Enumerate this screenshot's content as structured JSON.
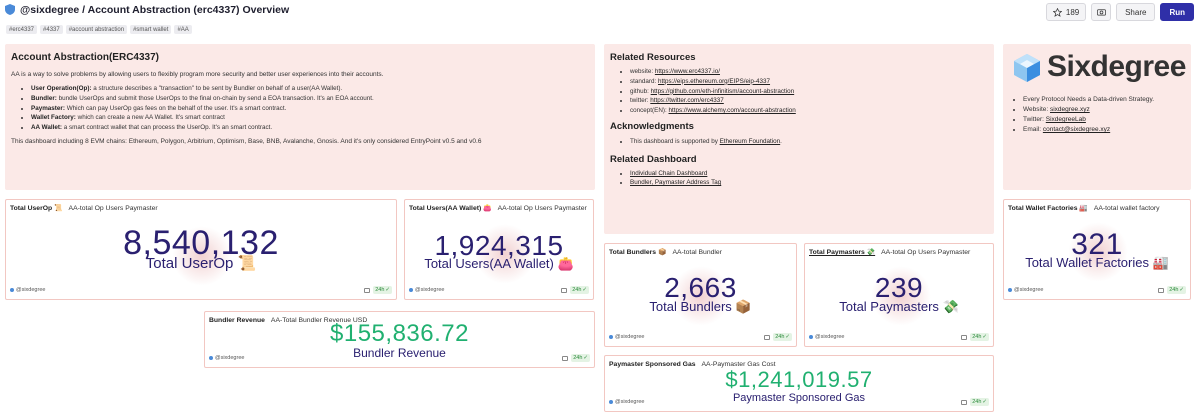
{
  "header": {
    "title": "@sixdegree / Account Abstraction (erc4337) Overview",
    "tags": [
      "#erc4337",
      "#4337",
      "#account abstraction",
      "#smart wallet",
      "#AA"
    ],
    "star_count": "189",
    "share_label": "Share",
    "run_label": "Run"
  },
  "intro": {
    "title": "Account Abstraction(ERC4337)",
    "description": "AA is a way to solve problems by allowing users to flexibly program more security and better user experiences into their accounts.",
    "items": [
      {
        "term": "User Operation(Op):",
        "text": " a structure describes a \"transaction\" to be sent by Bundler on behalf of a user(AA Wallet)."
      },
      {
        "term": "Bundler:",
        "text": " bundle UserOps and submit those UserOps to the final on-chain by send a EOA transaction. It's an EOA account."
      },
      {
        "term": "Paymaster:",
        "text": " Which can pay UserOp gas fees on the behalf of the user. It's a smart contract."
      },
      {
        "term": "Wallet Factory:",
        "text": " which can create a new AA Wallet. It's smart contract"
      },
      {
        "term": "AA Wallet:",
        "text": " a smart contract wallet that can process the UserOp. It's an smart contract."
      }
    ],
    "footer": "This dashboard including 8 EVM chains: Ethereum, Polygon, Arbitrium, Optimism, Base, BNB, Avalanche, Gnosis. And it's only considered EntryPoint v0.5 and v0.6"
  },
  "resources": {
    "title": "Related Resources",
    "links": [
      {
        "label": "website: ",
        "url": "https://www.erc4337.io/"
      },
      {
        "label": "standard: ",
        "url": "https://eips.ethereum.org/EIPS/eip-4337"
      },
      {
        "label": "github: ",
        "url": "https://github.com/eth-infinitism/account-abstraction"
      },
      {
        "label": "twitter: ",
        "url": "https://twitter.com/erc4337"
      },
      {
        "label": "concept(EN): ",
        "url": "https://www.alchemy.com/account-abstraction"
      }
    ],
    "ack_title": "Acknowledgments",
    "ack_text": "This dashboard is supported by ",
    "ack_link": "Ethereum Foundation",
    "ack_end": ".",
    "related_title": "Related Dashboard",
    "related_links": [
      "Individual Chain Dashboard",
      "Bundler, Paymaster Address Tag"
    ]
  },
  "brand": {
    "name": "Sixdegree",
    "items": [
      {
        "label": "Every Protocol Needs a Data-driven Strategy.",
        "link": ""
      },
      {
        "label": "Website: ",
        "link": "sixdegree.xyz"
      },
      {
        "label": "Twitter: ",
        "link": "SixdegreeLab"
      },
      {
        "label": "Email: ",
        "link": "contact@sixdegree.xyz"
      }
    ]
  },
  "counters": {
    "total_userop": {
      "title": "Total UserOp 📜",
      "subtitle": "AA-total Op Users Paymaster",
      "value": "8,540,132",
      "label": "Total UserOp 📜"
    },
    "total_users": {
      "title": "Total Users(AA Wallet) 👛",
      "subtitle": "AA-total Op Users Paymaster",
      "value": "1,924,315",
      "label": "Total Users(AA Wallet) 👛"
    },
    "total_bundlers": {
      "title": "Total Bundlers 📦",
      "subtitle": "AA-total Bundler",
      "value": "2,663",
      "label": "Total Bundlers 📦"
    },
    "total_paymasters": {
      "title": "Total Paymasters 💸",
      "subtitle": "AA-total Op Users Paymaster",
      "value": "239",
      "label": "Total Paymasters 💸"
    },
    "total_factories": {
      "title": "Total Wallet Factories 🏭",
      "subtitle": "AA-total wallet factory",
      "value": "321",
      "label": "Total Wallet Factories 🏭"
    },
    "bundler_revenue": {
      "title": "Bundler Revenue",
      "subtitle": "AA-Total Bundler Revenue USD",
      "value": "$155,836.72",
      "label": "Bundler Revenue"
    },
    "paymaster_gas": {
      "title": "Paymaster Sponsored Gas",
      "subtitle": "AA-Paymaster Gas Cost",
      "value": "$1,241,019.57",
      "label": "Paymaster Sponsored Gas"
    }
  },
  "common": {
    "owner": "@sixdegree",
    "refresh": "24h"
  },
  "colors": {
    "accent": "#2f2fa8",
    "panel": "#fbe9e7",
    "number": "#2a2070",
    "green": "#20b070"
  }
}
